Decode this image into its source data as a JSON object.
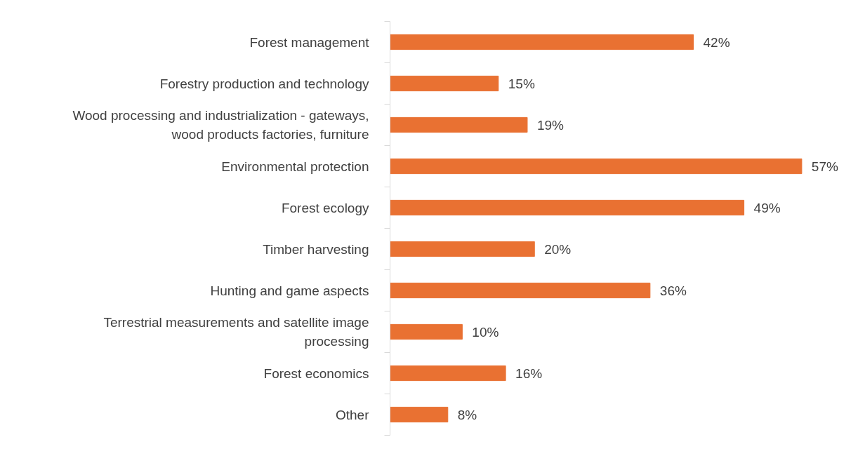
{
  "chart_data": {
    "type": "bar",
    "orientation": "horizontal",
    "categories": [
      "Forest management",
      "Forestry production and technology",
      "Wood processing and industrialization - gateways, wood products factories, furniture",
      "Environmental protection",
      "Forest ecology",
      "Timber harvesting",
      "Hunting and game aspects",
      "Terrestrial measurements and satellite image processing",
      "Forest economics",
      "Other"
    ],
    "values": [
      42,
      15,
      19,
      57,
      49,
      20,
      36,
      10,
      16,
      8
    ],
    "value_labels": [
      "42%",
      "15%",
      "19%",
      "57%",
      "49%",
      "20%",
      "36%",
      "10%",
      "16%",
      "8%"
    ],
    "color": "#e97132",
    "grid": false,
    "tick_labels": "y"
  }
}
